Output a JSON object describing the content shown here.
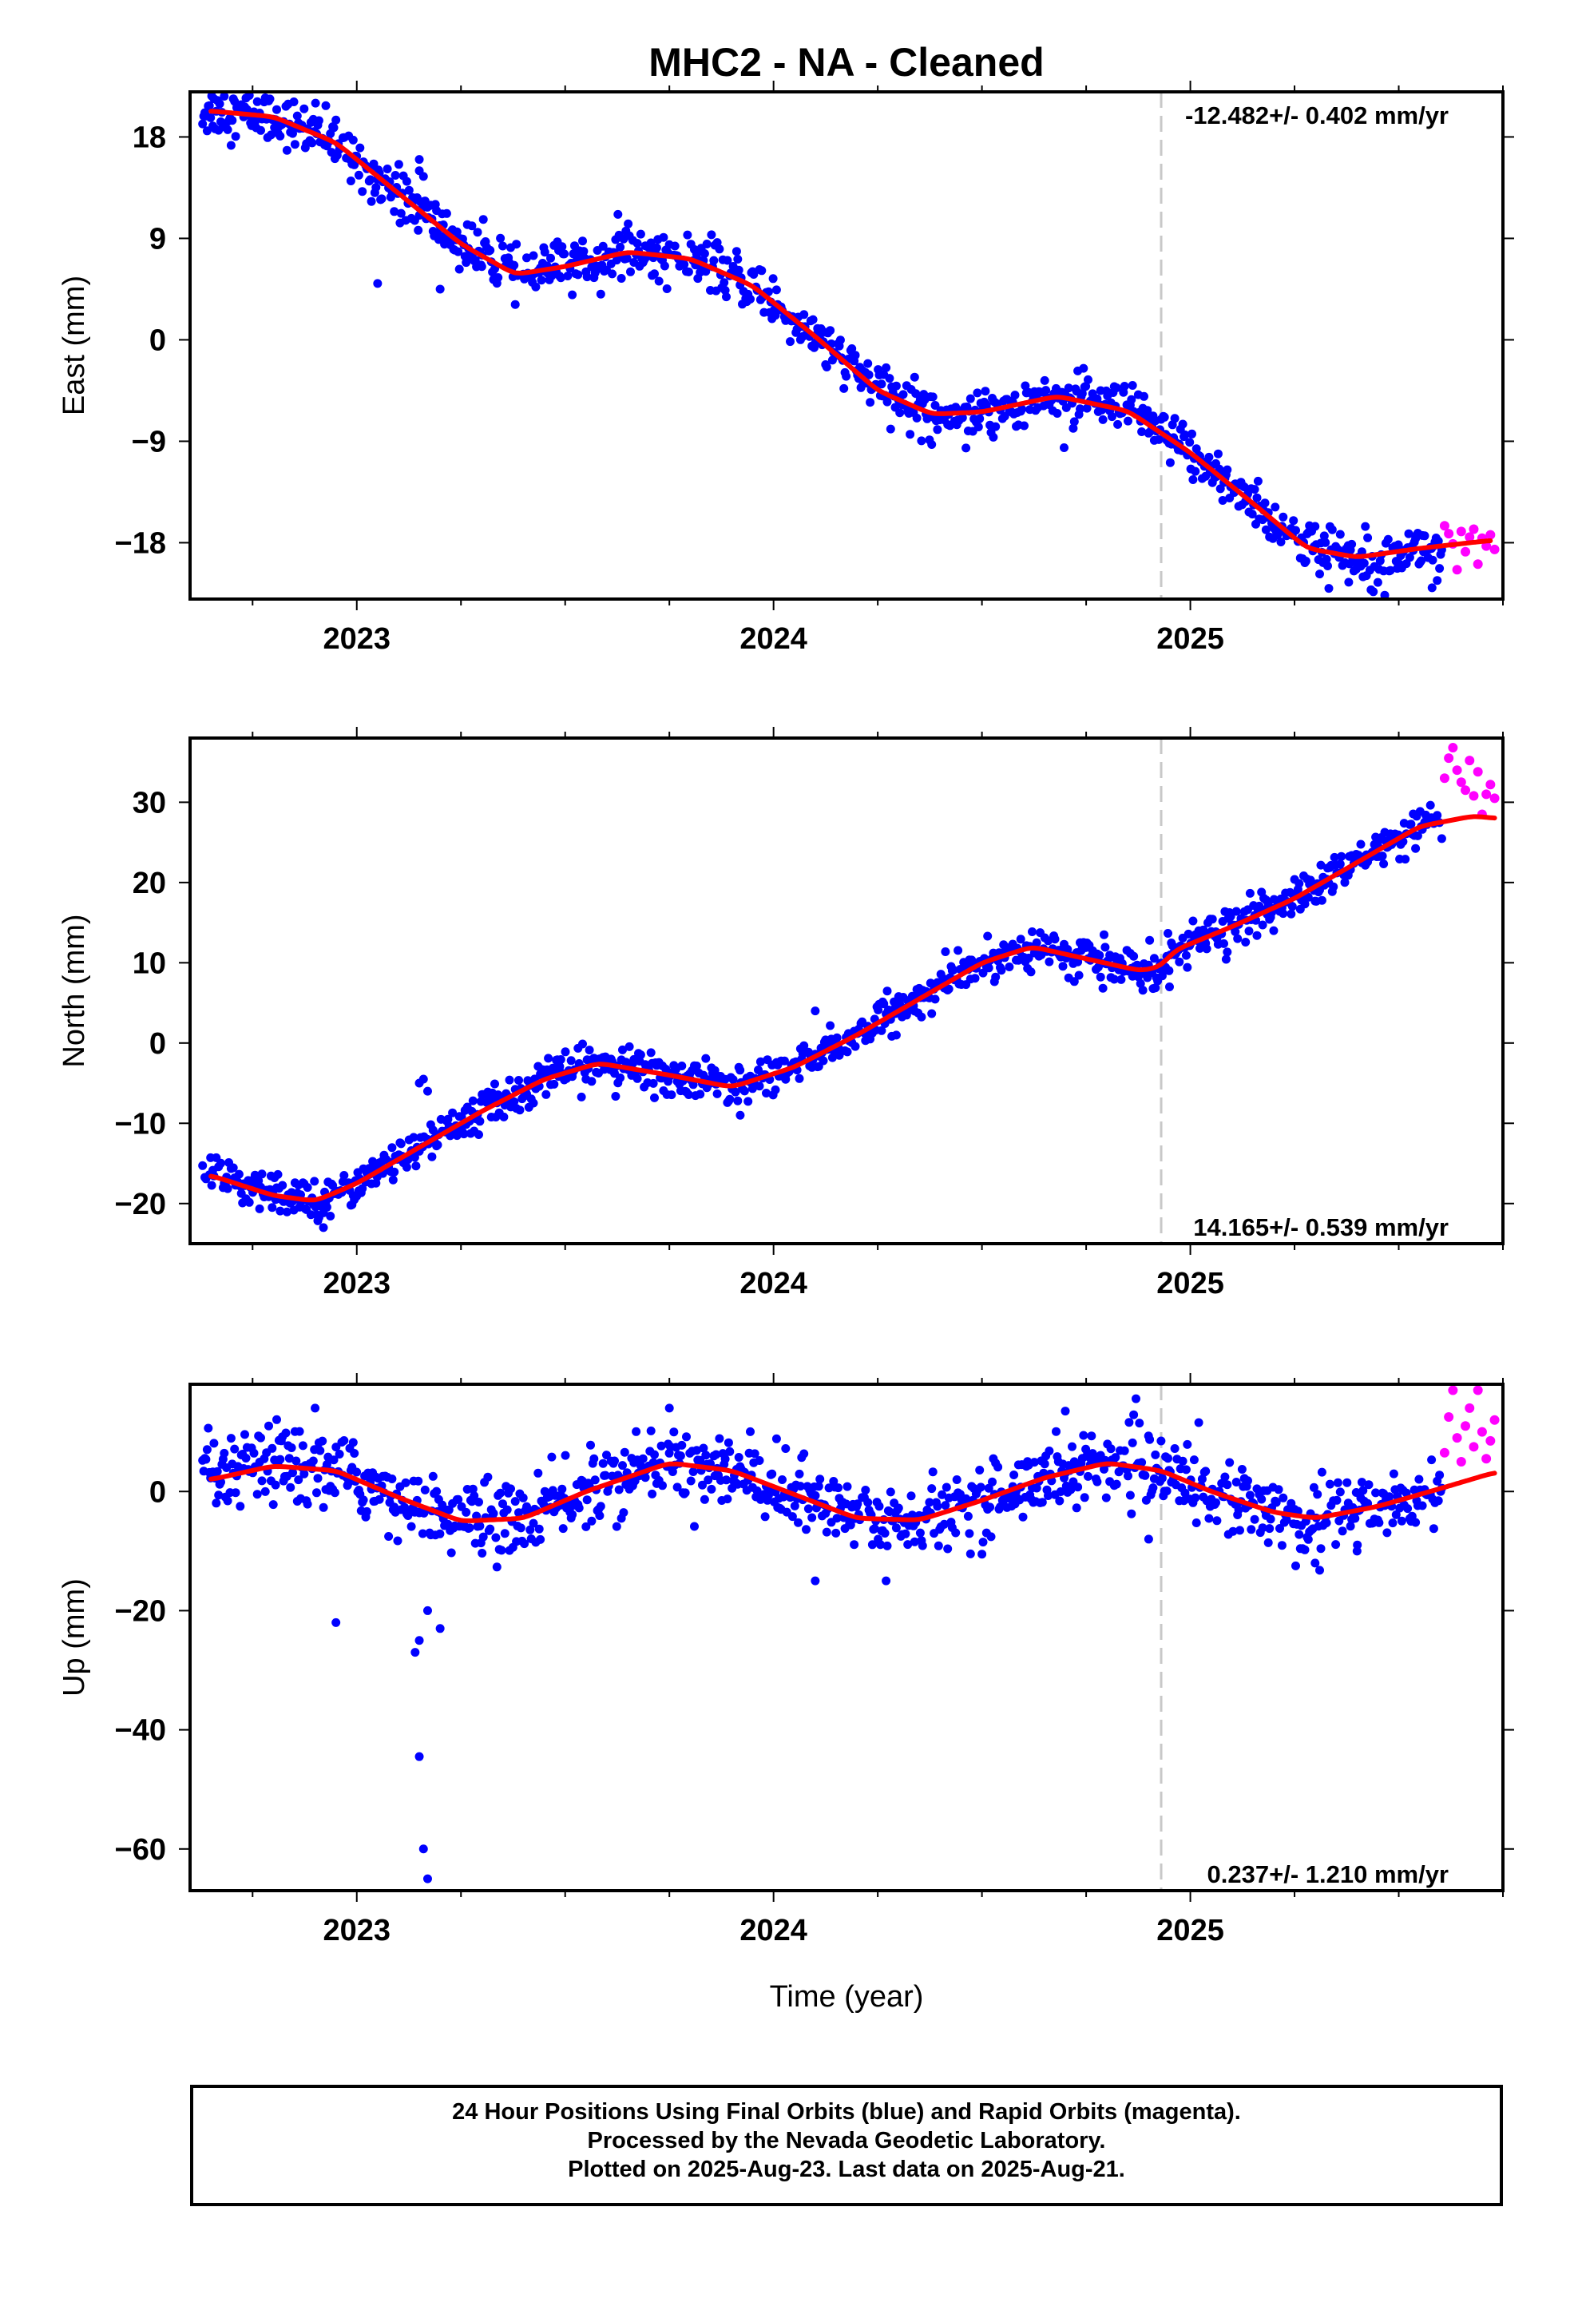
{
  "title": "MHC2  - NA - Cleaned",
  "xlabel": "Time (year)",
  "footer": {
    "line1": "24 Hour Positions Using Final Orbits (blue) and Rapid Orbits (magenta).",
    "line2": "Processed by the Nevada Geodetic Laboratory.",
    "line3": "Plotted on 2025-Aug-23. Last data on 2025-Aug-21."
  },
  "colors": {
    "final_orbits": "#0000ff",
    "rapid_orbits": "#ff00ff",
    "model_fit": "#ff0000",
    "equipment_change": "#c8c8c8"
  },
  "chart_data": [
    {
      "type": "scatter",
      "ylabel": "East (mm)",
      "rate_text": "-12.482+/- 0.402 mm/yr",
      "rate_placement": "top-right",
      "xlim": [
        2022.6,
        2025.75
      ],
      "ylim": [
        -23,
        22
      ],
      "x_ticks": [
        2023,
        2024,
        2025
      ],
      "y_ticks": [
        18,
        9,
        0,
        -9,
        -18
      ],
      "y_tick_labels": [
        "18",
        "9",
        "0",
        "−9",
        "−18"
      ],
      "grid": false,
      "break_x": 2024.93,
      "series": [
        {
          "kind": "final",
          "marker": "dot",
          "color": "#0000ff"
        },
        {
          "kind": "rapid",
          "marker": "dot",
          "color": "#ff00ff"
        },
        {
          "kind": "model",
          "marker": "line",
          "color": "#ff0000"
        }
      ],
      "model_points": [
        [
          2022.65,
          20.3
        ],
        [
          2022.8,
          19.8
        ],
        [
          2022.95,
          17.5
        ],
        [
          2023.1,
          13.0
        ],
        [
          2023.25,
          8.5
        ],
        [
          2023.38,
          5.8
        ],
        [
          2023.5,
          6.5
        ],
        [
          2023.65,
          7.8
        ],
        [
          2023.8,
          7.2
        ],
        [
          2023.95,
          4.8
        ],
        [
          2024.1,
          0.3
        ],
        [
          2024.25,
          -4.5
        ],
        [
          2024.38,
          -6.6
        ],
        [
          2024.5,
          -6.4
        ],
        [
          2024.68,
          -5.0
        ],
        [
          2024.85,
          -6.3
        ],
        [
          2025.0,
          -10.0
        ],
        [
          2025.15,
          -14.5
        ],
        [
          2025.28,
          -18.5
        ],
        [
          2025.4,
          -19.3
        ],
        [
          2025.55,
          -18.5
        ],
        [
          2025.72,
          -17.8
        ]
      ],
      "rapid_points": [
        [
          2025.61,
          -16.5
        ],
        [
          2025.62,
          -17.2
        ],
        [
          2025.63,
          -18.1
        ],
        [
          2025.64,
          -20.4
        ],
        [
          2025.65,
          -17.0
        ],
        [
          2025.66,
          -18.8
        ],
        [
          2025.67,
          -17.5
        ],
        [
          2025.68,
          -16.8
        ],
        [
          2025.69,
          -19.9
        ],
        [
          2025.7,
          -17.6
        ],
        [
          2025.71,
          -18.3
        ],
        [
          2025.72,
          -17.3
        ],
        [
          2025.73,
          -18.6
        ]
      ],
      "noise_mm": 1.1,
      "outliers": [
        [
          2023.15,
          16.0
        ],
        [
          2023.15,
          15.0
        ],
        [
          2023.16,
          14.5
        ],
        [
          2023.05,
          5.0
        ],
        [
          2023.2,
          4.5
        ],
        [
          2022.95,
          19.5
        ],
        [
          2023.3,
          6.5
        ],
        [
          2025.38,
          -21.5
        ],
        [
          2025.58,
          -22.0
        ]
      ]
    },
    {
      "type": "scatter",
      "ylabel": "North (mm)",
      "rate_text": "14.165+/- 0.539 mm/yr",
      "rate_placement": "bottom-right",
      "xlim": [
        2022.6,
        2025.75
      ],
      "ylim": [
        -25,
        38
      ],
      "x_ticks": [
        2023,
        2024,
        2025
      ],
      "y_ticks": [
        30,
        20,
        10,
        0,
        -10,
        -20
      ],
      "y_tick_labels": [
        "30",
        "20",
        "10",
        "0",
        "−10",
        "−20"
      ],
      "grid": false,
      "break_x": 2024.93,
      "series": [
        {
          "kind": "final",
          "marker": "dot",
          "color": "#0000ff"
        },
        {
          "kind": "rapid",
          "marker": "dot",
          "color": "#ff00ff"
        },
        {
          "kind": "model",
          "marker": "line",
          "color": "#ff0000"
        }
      ],
      "model_points": [
        [
          2022.65,
          -16.5
        ],
        [
          2022.8,
          -19.0
        ],
        [
          2022.9,
          -19.7
        ],
        [
          2023.0,
          -17.5
        ],
        [
          2023.15,
          -13.0
        ],
        [
          2023.3,
          -8.5
        ],
        [
          2023.45,
          -4.5
        ],
        [
          2023.58,
          -2.5
        ],
        [
          2023.75,
          -4.0
        ],
        [
          2023.9,
          -5.5
        ],
        [
          2024.05,
          -3.0
        ],
        [
          2024.2,
          1.0
        ],
        [
          2024.35,
          5.5
        ],
        [
          2024.5,
          10.0
        ],
        [
          2024.62,
          12.0
        ],
        [
          2024.75,
          10.5
        ],
        [
          2024.88,
          9.0
        ],
        [
          2024.93,
          9.5
        ],
        [
          2024.96,
          11.5
        ],
        [
          2025.1,
          14.5
        ],
        [
          2025.25,
          18.0
        ],
        [
          2025.4,
          22.5
        ],
        [
          2025.55,
          27.0
        ],
        [
          2025.68,
          28.3
        ],
        [
          2025.73,
          28.0
        ]
      ],
      "rapid_points": [
        [
          2025.61,
          33.0
        ],
        [
          2025.62,
          35.5
        ],
        [
          2025.63,
          36.8
        ],
        [
          2025.64,
          34.0
        ],
        [
          2025.65,
          32.5
        ],
        [
          2025.66,
          31.5
        ],
        [
          2025.67,
          35.2
        ],
        [
          2025.68,
          30.8
        ],
        [
          2025.69,
          33.8
        ],
        [
          2025.7,
          28.5
        ],
        [
          2025.71,
          31.0
        ],
        [
          2025.72,
          32.2
        ],
        [
          2025.73,
          30.5
        ]
      ],
      "noise_mm": 1.2,
      "outliers": [
        [
          2023.15,
          -5.0
        ],
        [
          2023.16,
          -4.5
        ],
        [
          2023.17,
          -6.0
        ],
        [
          2022.92,
          -23.0
        ],
        [
          2024.1,
          4.0
        ],
        [
          2023.92,
          -9.0
        ],
        [
          2024.95,
          7.0
        ],
        [
          2025.2,
          14.0
        ]
      ]
    },
    {
      "type": "scatter",
      "ylabel": "Up (mm)",
      "rate_text": "0.237+/- 1.210 mm/yr",
      "rate_placement": "bottom-right",
      "xlim": [
        2022.6,
        2025.75
      ],
      "ylim": [
        -67,
        18
      ],
      "x_ticks": [
        2023,
        2024,
        2025
      ],
      "y_ticks": [
        0,
        -20,
        -40,
        -60
      ],
      "y_tick_labels": [
        "0",
        "−20",
        "−40",
        "−60"
      ],
      "grid": false,
      "break_x": 2024.93,
      "series": [
        {
          "kind": "final",
          "marker": "dot",
          "color": "#0000ff"
        },
        {
          "kind": "rapid",
          "marker": "dot",
          "color": "#ff00ff"
        },
        {
          "kind": "model",
          "marker": "line",
          "color": "#ff0000"
        }
      ],
      "model_points": [
        [
          2022.65,
          2.0
        ],
        [
          2022.8,
          4.3
        ],
        [
          2022.95,
          3.5
        ],
        [
          2023.1,
          -1.0
        ],
        [
          2023.25,
          -5.0
        ],
        [
          2023.4,
          -4.5
        ],
        [
          2023.55,
          0.0
        ],
        [
          2023.75,
          4.8
        ],
        [
          2023.9,
          3.5
        ],
        [
          2024.05,
          -0.5
        ],
        [
          2024.2,
          -4.5
        ],
        [
          2024.35,
          -4.8
        ],
        [
          2024.5,
          -1.5
        ],
        [
          2024.65,
          2.3
        ],
        [
          2024.8,
          4.8
        ],
        [
          2024.93,
          3.5
        ],
        [
          2025.05,
          0.0
        ],
        [
          2025.2,
          -3.5
        ],
        [
          2025.3,
          -4.5
        ],
        [
          2025.45,
          -2.5
        ],
        [
          2025.6,
          0.5
        ],
        [
          2025.73,
          3.2
        ]
      ],
      "rapid_points": [
        [
          2025.61,
          6.5
        ],
        [
          2025.62,
          12.5
        ],
        [
          2025.63,
          17.0
        ],
        [
          2025.64,
          9.0
        ],
        [
          2025.65,
          5.0
        ],
        [
          2025.66,
          11.0
        ],
        [
          2025.67,
          14.0
        ],
        [
          2025.68,
          7.5
        ],
        [
          2025.69,
          17.0
        ],
        [
          2025.7,
          10.0
        ],
        [
          2025.71,
          5.5
        ],
        [
          2025.72,
          8.5
        ],
        [
          2025.73,
          12.0
        ]
      ],
      "noise_mm": 3.0,
      "outliers": [
        [
          2022.95,
          -22.0
        ],
        [
          2023.14,
          -27.0
        ],
        [
          2023.15,
          -25.0
        ],
        [
          2023.17,
          -20.0
        ],
        [
          2023.2,
          -23.0
        ],
        [
          2023.15,
          -44.5
        ],
        [
          2023.16,
          -60.0
        ],
        [
          2023.17,
          -65.0
        ],
        [
          2024.1,
          -15.0
        ],
        [
          2024.27,
          -15.0
        ],
        [
          2022.9,
          14.0
        ],
        [
          2023.75,
          14.0
        ],
        [
          2024.7,
          13.5
        ],
        [
          2025.4,
          -10.0
        ],
        [
          2024.9,
          -8.0
        ]
      ]
    }
  ]
}
